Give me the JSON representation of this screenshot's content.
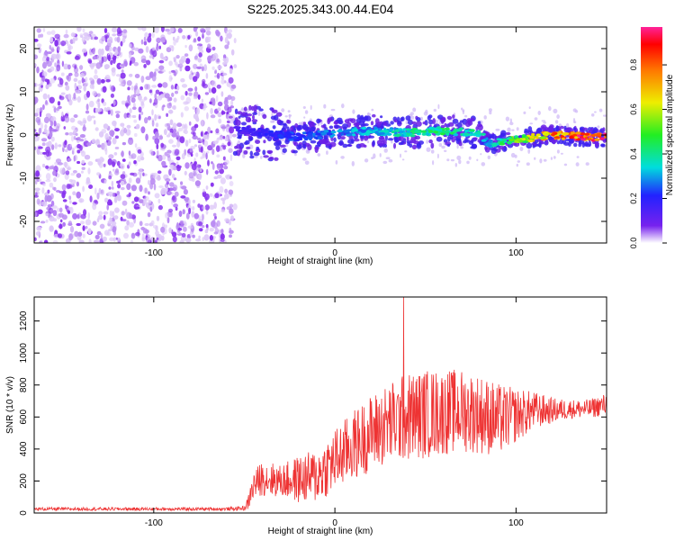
{
  "page_title": "S225.2025.343.00.44.E04",
  "chart_data": [
    {
      "type": "heatmap",
      "title": "S225.2025.343.00.44.E04",
      "xlabel": "Height of straight line (km)",
      "ylabel": "Frequency (Hz)",
      "xlim": [
        -166,
        150
      ],
      "ylim": [
        -25,
        25
      ],
      "x_ticks": [
        -100,
        0,
        100
      ],
      "y_ticks": [
        -20,
        -10,
        0,
        10,
        20
      ],
      "grid": false,
      "noise_region_x": [
        -166,
        -55
      ],
      "ridge": {
        "x": [
          -55,
          -40,
          -20,
          0,
          20,
          40,
          60,
          80,
          85,
          100,
          120,
          140,
          150
        ],
        "y": [
          1.5,
          0.5,
          -0.5,
          0.5,
          1,
          0.5,
          1,
          0.5,
          -2,
          -1,
          0,
          -0.5,
          -0.5
        ],
        "amplitude": [
          0.15,
          0.2,
          0.25,
          0.3,
          0.35,
          0.4,
          0.45,
          0.4,
          0.35,
          0.55,
          0.8,
          0.95,
          0.95
        ]
      },
      "colorbar": {
        "label": "Normalized spectral amplitude",
        "range": [
          0,
          0.97
        ],
        "ticks": [
          0.0,
          0.2,
          0.4,
          0.6,
          0.8
        ],
        "tick_labels": [
          "0.0",
          "0.2",
          "0.4",
          "0.6",
          "0.8"
        ],
        "colors": [
          "#ffffff",
          "#7722ee",
          "#2222ff",
          "#00dddd",
          "#22ee22",
          "#eeee00",
          "#ff7700",
          "#ff0000",
          "#ff2299"
        ]
      }
    },
    {
      "type": "line",
      "xlabel": "Height of straight line (km)",
      "ylabel": "SNR (10 * v/v)",
      "xlim": [
        -166,
        150
      ],
      "ylim": [
        0,
        1350
      ],
      "x_ticks": [
        -100,
        0,
        100
      ],
      "y_ticks": [
        0,
        200,
        400,
        600,
        800,
        1000,
        1200
      ],
      "grid": false,
      "color": "#ee3333",
      "envelope": {
        "x": [
          -166,
          -100,
          -60,
          -50,
          -48,
          -45,
          -40,
          -35,
          -30,
          -20,
          -10,
          0,
          10,
          20,
          30,
          40,
          50,
          60,
          70,
          80,
          90,
          100,
          110,
          120,
          130,
          140,
          150
        ],
        "mean": [
          25,
          25,
          25,
          30,
          60,
          170,
          220,
          210,
          200,
          210,
          230,
          330,
          420,
          500,
          560,
          600,
          620,
          630,
          640,
          620,
          580,
          610,
          640,
          640,
          650,
          650,
          680
        ],
        "spread": [
          10,
          10,
          10,
          15,
          40,
          90,
          110,
          110,
          100,
          150,
          170,
          200,
          220,
          240,
          260,
          280,
          280,
          270,
          260,
          250,
          230,
          170,
          120,
          80,
          60,
          60,
          70
        ]
      },
      "peak": {
        "x": 38,
        "y": 1350
      }
    }
  ]
}
